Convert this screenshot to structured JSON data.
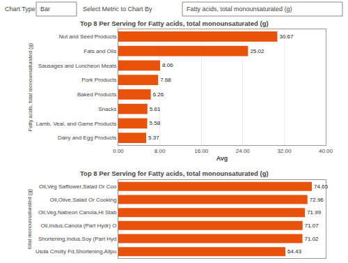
{
  "chart_data": [
    {
      "type": "bar",
      "orientation": "horizontal",
      "title": "Top 8 Per Serving for Fatty acids, total monounsaturated (g)",
      "annotations": [
        "Chart Type",
        "Bar",
        "Select Metric to Chart By",
        "Fatty acids, total monounsaturated (g)"
      ],
      "categories": [
        "Nut and Seed Products",
        "Fats and Oils",
        "Sausages and Luncheon Meats",
        "Pork Products",
        "Baked Products",
        "Snacks",
        "Lamb, Veal, and Game Products",
        "Dairy and Egg Products"
      ],
      "values": [
        30.67,
        25.02,
        8.06,
        7.68,
        6.26,
        5.61,
        5.58,
        5.37
      ],
      "color": "#E8520A",
      "xlim": [
        0,
        40
      ],
      "xticks": [
        {
          "value": 0,
          "label": "0.00"
        },
        {
          "value": 8,
          "label": "8.00"
        },
        {
          "value": 16,
          "label": "16.00"
        },
        {
          "value": 24,
          "label": "24.00"
        },
        {
          "value": 32,
          "label": "32.00"
        },
        {
          "value": 40,
          "label": "40.00"
        }
      ],
      "xlabel": "Avg",
      "ylabel": "Fatty acids, total monounsaturated (g)",
      "grid": true,
      "data_labels": true
    },
    {
      "type": "bar",
      "orientation": "horizontal",
      "title": "Top 8 Per Serving for Fatty acids, total monounsaturated (g)",
      "categories": [
        "Oil,Veg Safflower,Salad Or Coo",
        "Oil,Olive,Salad Or Cooking",
        "Oil,Veg,Natreon Canola,Hi Stab",
        "Oil,Indus,Canola (Part Hydr) O",
        "Shortening,Indus,Soy (Part Hyd",
        "Usda Cmdty Fd,Shortening,Allpu"
      ],
      "values": [
        74.65,
        72.96,
        71.99,
        71.07,
        71.02,
        64.43
      ],
      "color": "#E8520A",
      "xlim": [
        0,
        80
      ],
      "ylabel": "total monounsaturated (g)",
      "grid": false,
      "tick_labels": "y",
      "data_labels": true
    }
  ]
}
